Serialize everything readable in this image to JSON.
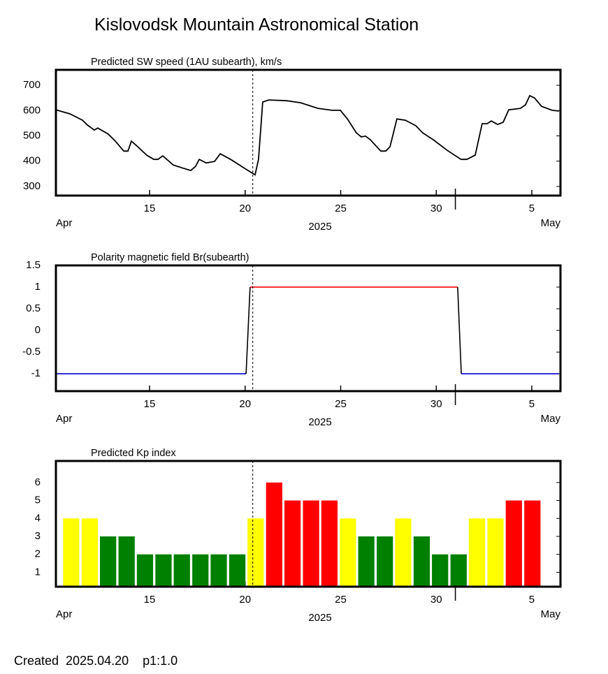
{
  "title": "Kislovodsk Mountain Astronomical Station",
  "footer": "Created  2025.04.20    p1:1.0",
  "chart_data": [
    {
      "type": "line",
      "title": "Predicted SW speed (1AU subearth), km/s",
      "xlabel": "2025",
      "x_start_label": "Apr",
      "x_end_label": "May",
      "xlim": [
        10.1,
        36.5
      ],
      "xticks": [
        15,
        20,
        25,
        30,
        {
          "value": 35,
          "label": "5"
        }
      ],
      "month_boundary": 31,
      "current_x": 20.4,
      "ylim": [
        264,
        761
      ],
      "yticks": [
        300,
        400,
        500,
        600,
        700
      ],
      "color": "#000000",
      "x": [
        10.1,
        10.83,
        11.49,
        11.75,
        12.11,
        12.29,
        12.84,
        13.21,
        13.65,
        13.87,
        14.05,
        14.38,
        14.85,
        15.22,
        15.44,
        15.69,
        16.24,
        16.68,
        17.16,
        17.41,
        17.6,
        17.96,
        18.4,
        18.7,
        19.24,
        20.15,
        20.52,
        20.7,
        20.92,
        21.25,
        22.17,
        22.9,
        23.81,
        24.54,
        24.98,
        25.35,
        25.82,
        26.08,
        26.3,
        26.55,
        27.1,
        27.36,
        27.58,
        27.94,
        28.38,
        28.93,
        29.29,
        29.84,
        30.57,
        31.3,
        31.6,
        32.04,
        32.4,
        32.66,
        32.88,
        33.21,
        33.5,
        33.79,
        34.41,
        34.67,
        34.89,
        35.14,
        35.51,
        36.06,
        36.42
      ],
      "values": [
        603,
        587,
        562,
        543,
        523,
        531,
        507,
        479,
        440,
        440,
        479,
        457,
        424,
        407,
        407,
        421,
        385,
        374,
        363,
        380,
        407,
        393,
        399,
        429,
        407,
        363,
        346,
        407,
        634,
        642,
        639,
        631,
        609,
        601,
        601,
        567,
        512,
        496,
        499,
        485,
        440,
        440,
        457,
        567,
        562,
        540,
        512,
        485,
        443,
        407,
        407,
        424,
        548,
        548,
        559,
        545,
        554,
        603,
        609,
        623,
        659,
        650,
        617,
        601,
        598
      ]
    },
    {
      "type": "line",
      "title": "Polarity magnetic field  Br(subearth)",
      "xlabel": "2025",
      "x_start_label": "Apr",
      "x_end_label": "May",
      "xlim": [
        10.1,
        36.5
      ],
      "xticks": [
        15,
        20,
        25,
        30,
        {
          "value": 35,
          "label": "5"
        }
      ],
      "month_boundary": 31,
      "current_x": 20.4,
      "ylim": [
        -1.4,
        1.5
      ],
      "yticks": [
        1.5,
        1,
        0.5,
        0,
        -0.5,
        -1
      ],
      "x": [
        10.1,
        20.05,
        20.26,
        31.12,
        31.31,
        36.42
      ],
      "values": [
        -1,
        -1,
        1,
        1,
        -1,
        -1
      ],
      "segment_colors": [
        "#0000cc",
        "#000000",
        "#ff0000",
        "#000000",
        "#0000cc"
      ]
    },
    {
      "type": "bar",
      "title": "Predicted Kp index",
      "xlabel": "2025",
      "x_start_label": "Apr",
      "x_end_label": "May",
      "xlim": [
        10.1,
        36.5
      ],
      "xticks": [
        15,
        20,
        25,
        30,
        {
          "value": 35,
          "label": "5"
        }
      ],
      "month_boundary": 31,
      "current_x": 20.4,
      "ylim": [
        0.2,
        7.2
      ],
      "yticks": [
        1,
        2,
        3,
        4,
        5,
        6
      ],
      "bar_width": 0.85,
      "x": [
        10.9,
        11.87,
        12.83,
        13.8,
        14.76,
        15.73,
        16.69,
        17.66,
        18.62,
        19.59,
        20.55,
        21.52,
        22.48,
        23.45,
        24.41,
        25.38,
        26.34,
        27.31,
        28.27,
        29.24,
        30.2,
        31.17,
        32.13,
        33.1,
        34.06,
        35.03
      ],
      "values": [
        4,
        4,
        3,
        3,
        2,
        2,
        2,
        2,
        2,
        2,
        4,
        6,
        5,
        5,
        5,
        4,
        3,
        3,
        4,
        3,
        2,
        2,
        4,
        4,
        5,
        5
      ],
      "colors": [
        "#ffff00",
        "#ffff00",
        "#008000",
        "#008000",
        "#008000",
        "#008000",
        "#008000",
        "#008000",
        "#008000",
        "#008000",
        "#ffff00",
        "#ff0000",
        "#ff0000",
        "#ff0000",
        "#ff0000",
        "#ffff00",
        "#008000",
        "#008000",
        "#ffff00",
        "#008000",
        "#008000",
        "#008000",
        "#ffff00",
        "#ffff00",
        "#ff0000",
        "#ff0000"
      ]
    }
  ]
}
